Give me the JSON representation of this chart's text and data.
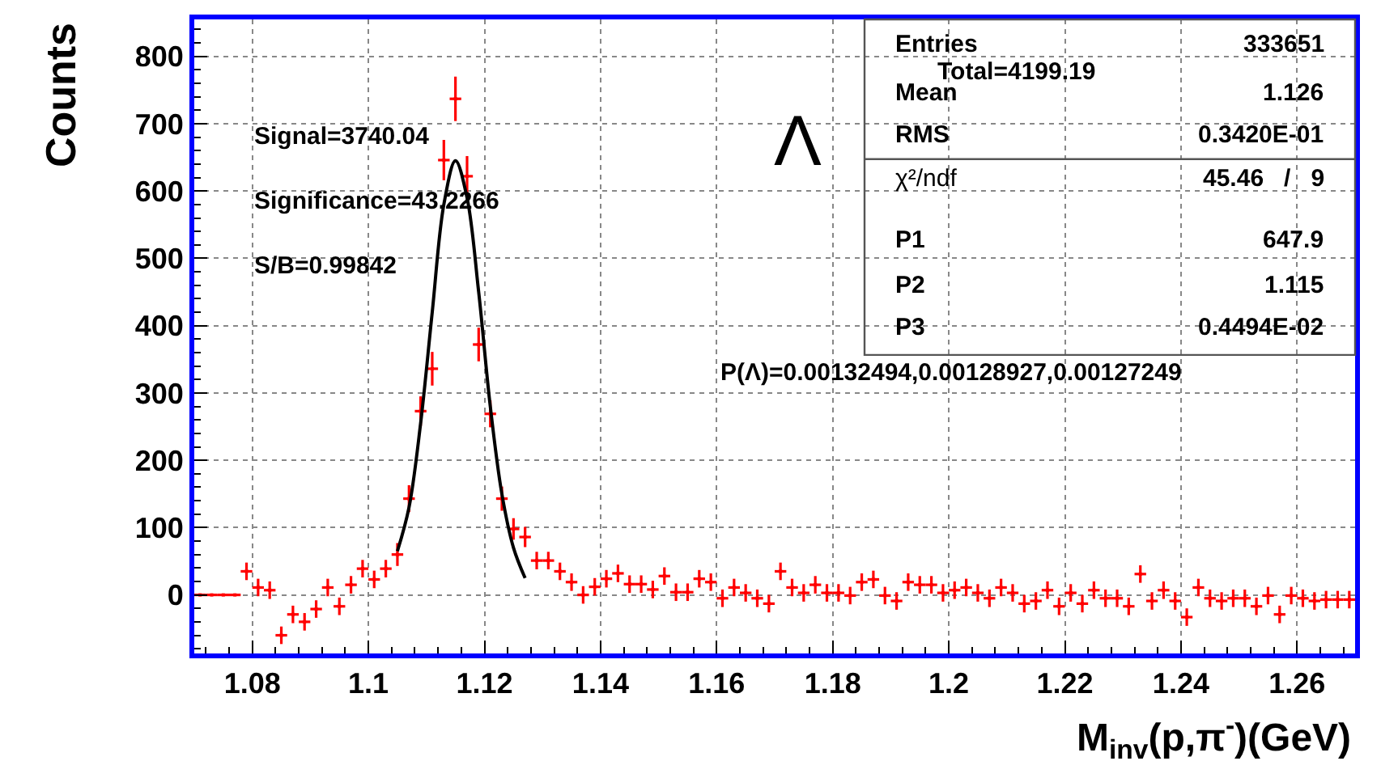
{
  "chart_data": {
    "type": "scatter",
    "xlabel": "M$_{inv}$(p,π$^{-}$)(GeV)",
    "ylabel": "Counts",
    "x": [
      1.071,
      1.073,
      1.075,
      1.077,
      1.079,
      1.081,
      1.083,
      1.085,
      1.087,
      1.089,
      1.091,
      1.093,
      1.095,
      1.097,
      1.099,
      1.101,
      1.103,
      1.105,
      1.107,
      1.109,
      1.111,
      1.113,
      1.115,
      1.117,
      1.119,
      1.121,
      1.123,
      1.125,
      1.127,
      1.129,
      1.131,
      1.133,
      1.135,
      1.137,
      1.139,
      1.141,
      1.143,
      1.145,
      1.147,
      1.149,
      1.151,
      1.153,
      1.155,
      1.157,
      1.159,
      1.161,
      1.163,
      1.165,
      1.167,
      1.169,
      1.171,
      1.173,
      1.175,
      1.177,
      1.179,
      1.181,
      1.183,
      1.185,
      1.187,
      1.189,
      1.191,
      1.193,
      1.195,
      1.197,
      1.199,
      1.201,
      1.203,
      1.205,
      1.207,
      1.209,
      1.211,
      1.213,
      1.215,
      1.217,
      1.219,
      1.221,
      1.223,
      1.225,
      1.227,
      1.229,
      1.231,
      1.233,
      1.235,
      1.237,
      1.239,
      1.241,
      1.243,
      1.245,
      1.247,
      1.249,
      1.251,
      1.253,
      1.255,
      1.257,
      1.259,
      1.261,
      1.263,
      1.265,
      1.267,
      1.269
    ],
    "series": [
      {
        "color": "#ff0000",
        "values": [
          0,
          0,
          0,
          0,
          35,
          11,
          7,
          -60,
          -29,
          -40,
          -21,
          11,
          -17,
          15,
          39,
          23,
          39,
          60,
          143,
          273,
          336,
          646,
          737,
          622,
          372,
          269,
          143,
          98,
          86,
          51,
          51,
          35,
          19,
          0,
          12,
          24,
          32,
          16,
          16,
          8,
          28,
          4,
          4,
          24,
          19,
          -5,
          11,
          3,
          -5,
          -13,
          35,
          11,
          3,
          15,
          3,
          3,
          -1,
          19,
          23,
          -1,
          -9,
          19,
          15,
          15,
          3,
          7,
          11,
          3,
          -5,
          11,
          3,
          -13,
          -9,
          7,
          -17,
          3,
          -13,
          7,
          -5,
          -5,
          -17,
          31,
          -9,
          7,
          -9,
          -33,
          11,
          -5,
          -9,
          -5,
          -5,
          -17,
          -1,
          -29,
          -1,
          -5,
          -9,
          -7,
          -7,
          -7
        ],
        "errors": [
          0,
          0,
          0,
          0,
          13,
          13,
          13,
          13,
          13,
          13,
          13,
          13,
          13,
          13,
          13,
          13,
          13,
          17,
          20,
          22,
          25,
          30,
          33,
          30,
          25,
          20,
          18,
          16,
          15,
          13,
          13,
          13,
          13,
          13,
          13,
          13,
          13,
          13,
          13,
          13,
          13,
          13,
          13,
          13,
          13,
          13,
          13,
          13,
          13,
          13,
          13,
          13,
          13,
          13,
          13,
          13,
          13,
          13,
          13,
          13,
          13,
          13,
          13,
          13,
          13,
          13,
          13,
          13,
          13,
          13,
          13,
          13,
          13,
          13,
          13,
          13,
          13,
          13,
          13,
          13,
          13,
          13,
          13,
          13,
          13,
          13,
          13,
          13,
          13,
          13,
          13,
          13,
          13,
          13,
          13,
          13,
          13,
          13,
          13,
          13
        ],
        "xerrors": [
          0.001,
          0.001,
          0.001,
          0.001,
          0.001,
          0.001,
          0.001,
          0.001,
          0.001,
          0.001,
          0.001,
          0.001,
          0.001,
          0.001,
          0.001,
          0.001,
          0.001,
          0.001,
          0.001,
          0.001,
          0.001,
          0.001,
          0.001,
          0.001,
          0.001,
          0.001,
          0.001,
          0.001,
          0.001,
          0.001,
          0.001,
          0.001,
          0.001,
          0.001,
          0.001,
          0.001,
          0.001,
          0.001,
          0.001,
          0.001,
          0.001,
          0.001,
          0.001,
          0.001,
          0.001,
          0.001,
          0.001,
          0.001,
          0.001,
          0.001,
          0.001,
          0.001,
          0.001,
          0.001,
          0.001,
          0.001,
          0.001,
          0.001,
          0.001,
          0.001,
          0.001,
          0.001,
          0.001,
          0.001,
          0.001,
          0.001,
          0.001,
          0.001,
          0.001,
          0.001,
          0.001,
          0.001,
          0.001,
          0.001,
          0.001,
          0.001,
          0.001,
          0.001,
          0.001,
          0.001,
          0.001,
          0.001,
          0.001,
          0.001,
          0.001,
          0.001,
          0.001,
          0.001,
          0.001,
          0.001,
          0.001,
          0.001,
          0.001,
          0.001,
          0.001,
          0.001,
          0.001,
          0.001,
          0.001,
          0.001
        ]
      },
      {
        "type": "line",
        "color": "#000000",
        "x": [
          1.105,
          1.107,
          1.109,
          1.111,
          1.113,
          1.115,
          1.117,
          1.119,
          1.121,
          1.123,
          1.125,
          1.127
        ],
        "values": [
          65,
          130,
          255,
          420,
          580,
          645,
          590,
          450,
          280,
          150,
          70,
          25
        ]
      }
    ],
    "xlim": [
      1.07,
      1.27
    ],
    "xticks": [
      1.08,
      1.1,
      1.12,
      1.14,
      1.16,
      1.18,
      1.2,
      1.22,
      1.24,
      1.26
    ],
    "ylim": [
      -87,
      855
    ],
    "yticks": [
      0,
      100,
      200,
      300,
      400,
      500,
      600,
      700,
      800
    ],
    "grid": true,
    "annotations": [
      "Total=4199.19",
      "Signal=3740.04",
      "Significance=43.2266",
      "S/B=0.99842",
      "Λ",
      "P(Λ)=0.00132494,0.00128927,0.00127249",
      "Entries",
      "333651",
      "Mean",
      "1.126",
      "RMS",
      "0.3420E-01",
      "χ²/ndf",
      "45.46   /   9",
      "P1",
      "647.9",
      "P2",
      "1.115",
      "P3",
      "0.4494E-02"
    ]
  }
}
